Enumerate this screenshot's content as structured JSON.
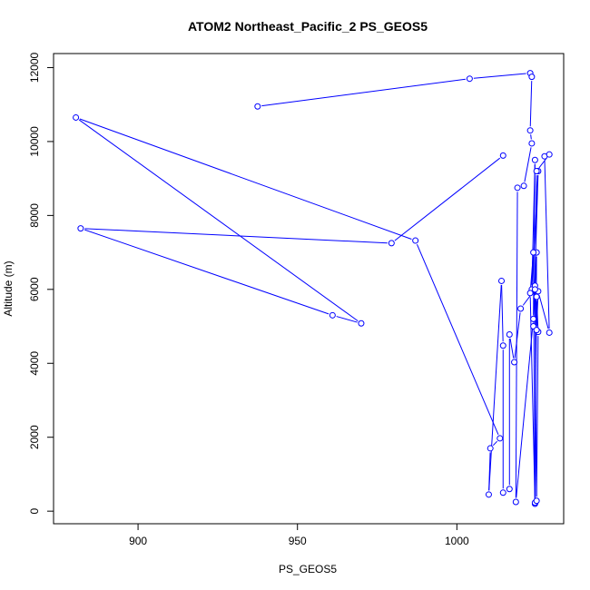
{
  "chart_data": {
    "type": "line",
    "title": "ATOM2 Northeast_Pacific_2 PS_GEOS5",
    "xlabel": "PS_GEOS5",
    "ylabel": "Altitude (m)",
    "xlim": [
      873.5,
      1033.5
    ],
    "ylim": [
      -340,
      12380
    ],
    "xticks": [
      900,
      950,
      1000
    ],
    "yticks": [
      0,
      2000,
      4000,
      6000,
      8000,
      10000,
      12000
    ],
    "series_color": "#0000ff",
    "series": [
      {
        "points": [
          [
            937.5,
            10950
          ],
          [
            1004.0,
            11700
          ],
          [
            1023.0,
            11850
          ],
          [
            1023.5,
            11750
          ],
          [
            1023.0,
            10300
          ],
          [
            1023.5,
            9950
          ],
          [
            1021.0,
            8800
          ],
          [
            1019.0,
            8750
          ],
          [
            1018.5,
            250
          ],
          [
            1024.0,
            5200
          ],
          [
            1024.5,
            9500
          ],
          [
            1023.5,
            6000
          ],
          [
            1025.5,
            9200
          ],
          [
            1024.0,
            5000
          ],
          [
            1025.0,
            7000
          ],
          [
            1024.5,
            200
          ],
          [
            1024.0,
            7000
          ],
          [
            1023.0,
            5900
          ],
          [
            1024.5,
            230
          ],
          [
            1025.0,
            5800
          ],
          [
            1025.5,
            4850
          ],
          [
            1025.0,
            280
          ],
          [
            1024.5,
            6100
          ],
          [
            1025.0,
            4900
          ],
          [
            1025.5,
            5950
          ],
          [
            1029.0,
            4830
          ],
          [
            1027.5,
            9600
          ],
          [
            1029.0,
            9650
          ],
          [
            1025.0,
            9200
          ],
          [
            1024.5,
            6000
          ],
          [
            1020.0,
            5480
          ],
          [
            1018.0,
            4030
          ],
          [
            1016.5,
            4780
          ],
          [
            1016.5,
            600
          ],
          [
            1014.5,
            500
          ],
          [
            1014.5,
            4480
          ],
          [
            1014.0,
            6230
          ],
          [
            1010.0,
            450
          ],
          [
            1010.5,
            1700
          ],
          [
            1013.5,
            1970
          ],
          [
            987.0,
            7320
          ],
          [
            880.5,
            10650
          ],
          [
            970.0,
            5080
          ],
          [
            961.0,
            5300
          ],
          [
            882.0,
            7650
          ],
          [
            979.5,
            7250
          ],
          [
            1014.5,
            9620
          ]
        ]
      }
    ]
  }
}
